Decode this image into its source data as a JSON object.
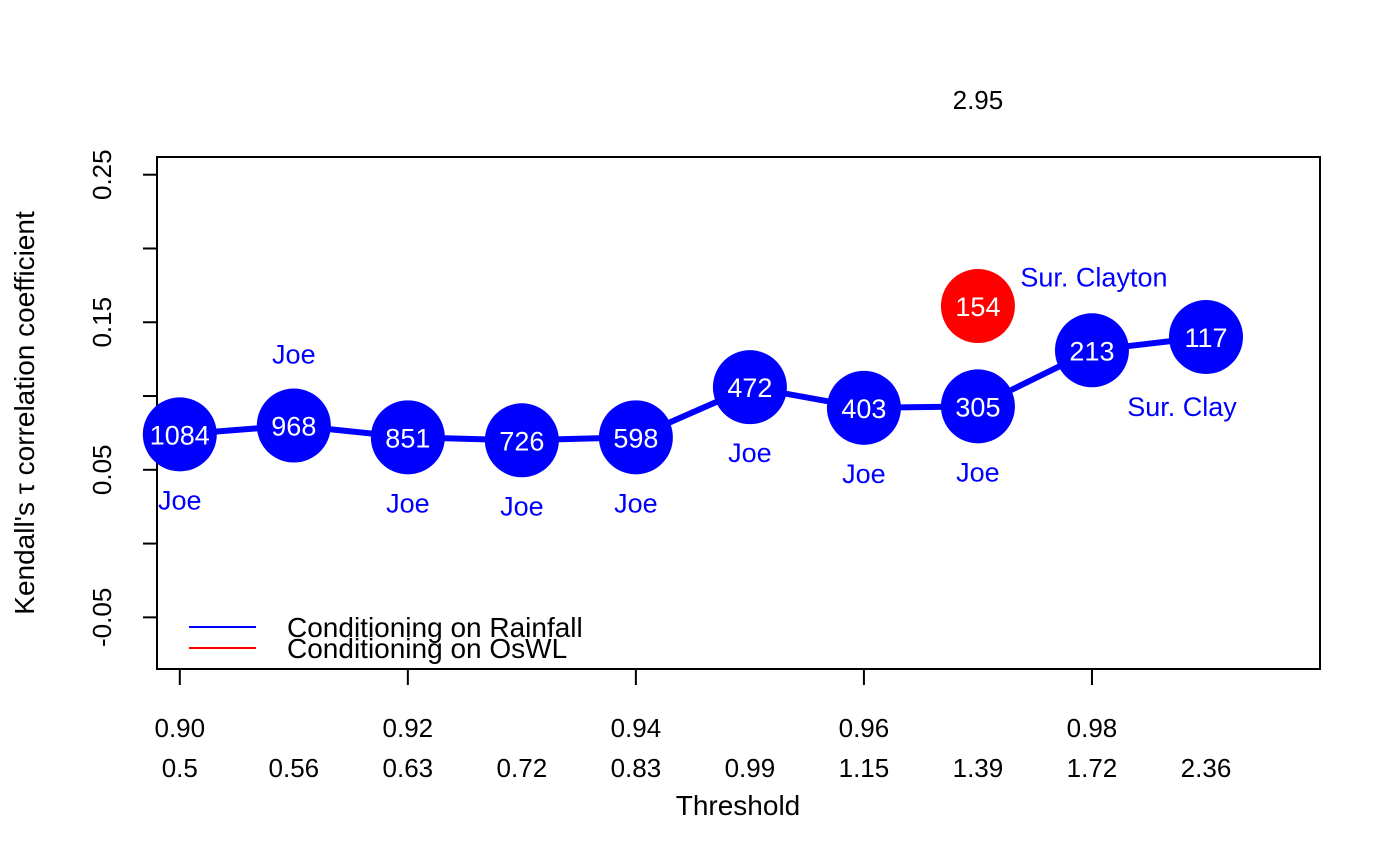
{
  "chart_data": {
    "type": "scatter",
    "xlabel": "Threshold",
    "ylabel": "Kendall's τ correlation coefficient",
    "xlim": [
      0.898,
      1.0
    ],
    "ylim": [
      -0.085,
      0.262
    ],
    "x_ticks": [
      {
        "value": 0.9,
        "label": "0.90"
      },
      {
        "value": 0.92,
        "label": "0.92"
      },
      {
        "value": 0.94,
        "label": "0.94"
      },
      {
        "value": 0.96,
        "label": "0.96"
      },
      {
        "value": 0.98,
        "label": "0.98"
      }
    ],
    "y_ticks": [
      {
        "value": -0.05,
        "label": "-0.05",
        "labeled": true
      },
      {
        "value": 0.0,
        "label": "",
        "labeled": false
      },
      {
        "value": 0.05,
        "label": "0.05",
        "labeled": true
      },
      {
        "value": 0.1,
        "label": "",
        "labeled": false
      },
      {
        "value": 0.15,
        "label": "0.15",
        "labeled": true
      },
      {
        "value": 0.2,
        "label": "",
        "labeled": false
      },
      {
        "value": 0.25,
        "label": "0.25",
        "labeled": true
      }
    ],
    "secondary_x_labels": {
      "color": "#0000ff",
      "items": [
        {
          "x": 0.9,
          "label": "0.5"
        },
        {
          "x": 0.91,
          "label": "0.56"
        },
        {
          "x": 0.92,
          "label": "0.63"
        },
        {
          "x": 0.93,
          "label": "0.72"
        },
        {
          "x": 0.94,
          "label": "0.83"
        },
        {
          "x": 0.95,
          "label": "0.99"
        },
        {
          "x": 0.96,
          "label": "1.15"
        },
        {
          "x": 0.97,
          "label": "1.39"
        },
        {
          "x": 0.98,
          "label": "1.72"
        },
        {
          "x": 0.99,
          "label": "2.36"
        }
      ]
    },
    "secondary_x_labels_red": {
      "color": "#ff0000",
      "items": [
        {
          "x": 0.97,
          "label": "2.95"
        }
      ]
    },
    "series": [
      {
        "name": "Conditioning on Rainfall",
        "color": "#0000ff",
        "line": true,
        "points": [
          {
            "x": 0.9,
            "y": 0.074,
            "n": "1084",
            "copula": "Joe",
            "copula_pos": "below"
          },
          {
            "x": 0.91,
            "y": 0.08,
            "n": "968",
            "copula": "Joe",
            "copula_pos": "above"
          },
          {
            "x": 0.92,
            "y": 0.072,
            "n": "851",
            "copula": "Joe",
            "copula_pos": "below"
          },
          {
            "x": 0.93,
            "y": 0.07,
            "n": "726",
            "copula": "Joe",
            "copula_pos": "below"
          },
          {
            "x": 0.94,
            "y": 0.072,
            "n": "598",
            "copula": "Joe",
            "copula_pos": "below"
          },
          {
            "x": 0.95,
            "y": 0.106,
            "n": "472",
            "copula": "Joe",
            "copula_pos": "below"
          },
          {
            "x": 0.96,
            "y": 0.092,
            "n": "403",
            "copula": "Joe",
            "copula_pos": "below"
          },
          {
            "x": 0.97,
            "y": 0.093,
            "n": "305",
            "copula": "Joe",
            "copula_pos": "below"
          },
          {
            "x": 0.98,
            "y": 0.131,
            "n": "213",
            "copula": "Sur. Clayton",
            "copula_pos": "above-right"
          },
          {
            "x": 0.99,
            "y": 0.14,
            "n": "117",
            "copula": "Sur. Clay",
            "copula_pos": "below-right"
          }
        ]
      },
      {
        "name": "Conditioning on OsWL",
        "color": "#ff0000",
        "line": false,
        "points": [
          {
            "x": 0.97,
            "y": 0.161,
            "n": "154",
            "copula": "",
            "copula_pos": "none"
          }
        ]
      }
    ],
    "legend": {
      "position": "bottom-left",
      "entries": [
        {
          "label": "Conditioning on Rainfall",
          "color": "#0000ff"
        },
        {
          "label": "Conditioning on OsWL",
          "color": "#ff0000"
        }
      ]
    }
  }
}
